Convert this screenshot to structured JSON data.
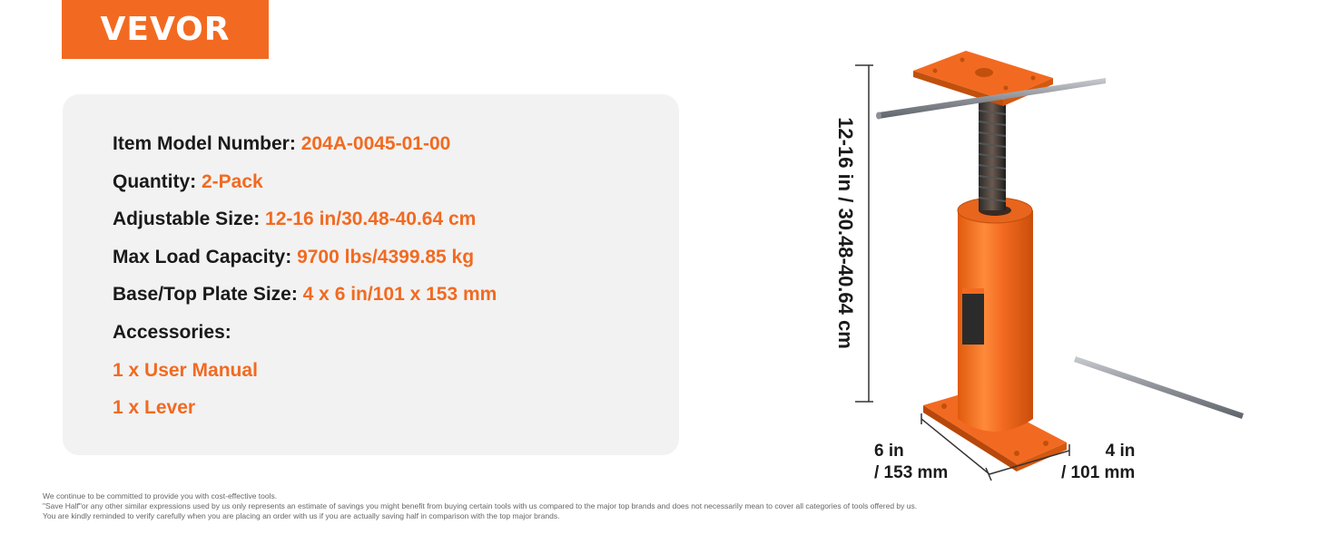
{
  "brand": {
    "name": "VEVOR",
    "color": "#f26a21"
  },
  "specs": [
    {
      "label": "Item Model Number: ",
      "value": "204A-0045-01-00"
    },
    {
      "label": "Quantity: ",
      "value": "2-Pack"
    },
    {
      "label": "Adjustable Size: ",
      "value": "12-16 in/30.48-40.64 cm"
    },
    {
      "label": "Max Load Capacity: ",
      "value": "9700 lbs/4399.85 kg"
    },
    {
      "label": "Base/Top Plate Size: ",
      "value": "4 x 6 in/101 x 153 mm"
    }
  ],
  "accessories": {
    "heading": "Accessories:",
    "items": [
      "1 x User Manual",
      "1 x Lever"
    ]
  },
  "dimensions": {
    "height": "12-16 in / 30.48-40.64 cm",
    "length_line1": "6 in",
    "length_line2": "/ 153 mm",
    "width_line1": "4 in",
    "width_line2": "/ 101 mm"
  },
  "footer": {
    "line1": "We continue to be committed to provide you with cost-effective tools.",
    "line2": "\"Save Half\"or any other similar expressions used by us only represents an estimate of savings you might benefit from buying certain tools with us compared to the major top brands and does not necessarily mean to cover all categories of tools offered by us.",
    "line3": "You are kindly reminded to verify carefully when you are placing an order with us if you are actually saving half in comparison with the top major brands."
  }
}
